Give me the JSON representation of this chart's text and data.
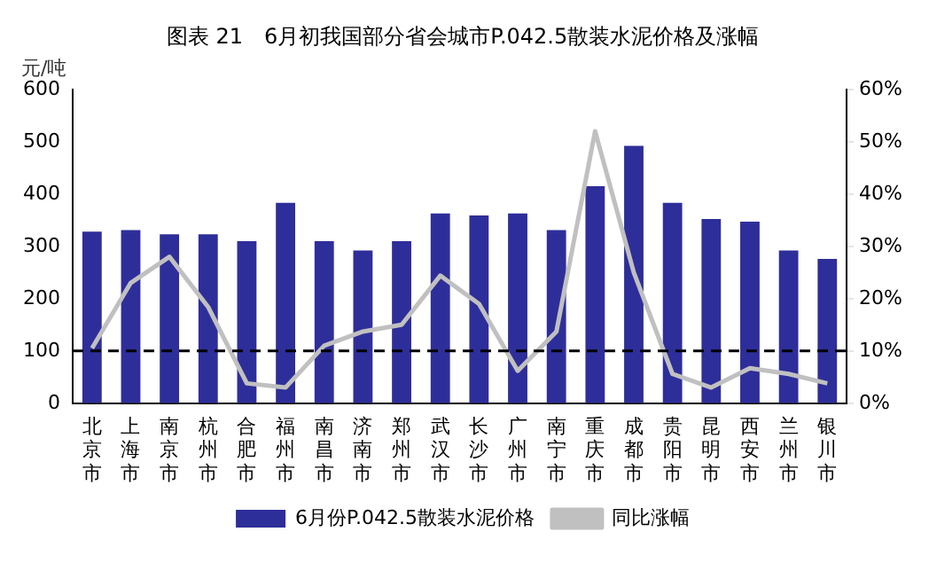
{
  "chart_data": {
    "type": "bar",
    "title": "图表 21　6月初我国部分省会城市P.042.5散装水泥价格及涨幅",
    "ylabel": "元/吨",
    "categories": [
      "北京市",
      "上海市",
      "南京市",
      "杭州市",
      "合肥市",
      "福州市",
      "南昌市",
      "济南市",
      "郑州市",
      "武汉市",
      "长沙市",
      "广州市",
      "南宁市",
      "重庆市",
      "成都市",
      "贵阳市",
      "昆明市",
      "西安市",
      "兰州市",
      "银川市"
    ],
    "series": [
      {
        "name": "6月份P.042.5散装水泥价格",
        "color": "#2e2e9a",
        "values": [
          328,
          331,
          323,
          323,
          310,
          383,
          310,
          292,
          310,
          363,
          359,
          363,
          331,
          415,
          492,
          383,
          352,
          347,
          292,
          276
        ]
      },
      {
        "name": "同比涨幅",
        "type": "line",
        "axis": "y2",
        "color": "#c0c0c0",
        "values": [
          10.5,
          23,
          28,
          18.4,
          3.8,
          3,
          11,
          13.7,
          15,
          24.4,
          19,
          6.2,
          13.7,
          52,
          25,
          5.6,
          3,
          6.7,
          5.6,
          3.8
        ]
      }
    ],
    "ylim": [
      0,
      600
    ],
    "yticks": [
      0,
      100,
      200,
      300,
      400,
      500,
      600
    ],
    "y2lim": [
      0,
      60
    ],
    "y2ticks": [
      {
        "value": 0,
        "label": "0%"
      },
      {
        "value": 10,
        "label": "10%"
      },
      {
        "value": 20,
        "label": "20%"
      },
      {
        "value": 30,
        "label": "30%"
      },
      {
        "value": 40,
        "label": "40%"
      },
      {
        "value": 50,
        "label": "50%"
      },
      {
        "value": 60,
        "label": "60%"
      }
    ],
    "ref_lines": [
      {
        "axis": "y",
        "value": 100,
        "color": "#000000",
        "line_style": "dashed"
      }
    ],
    "grid": false,
    "legend": "bottom",
    "marker": "none"
  }
}
